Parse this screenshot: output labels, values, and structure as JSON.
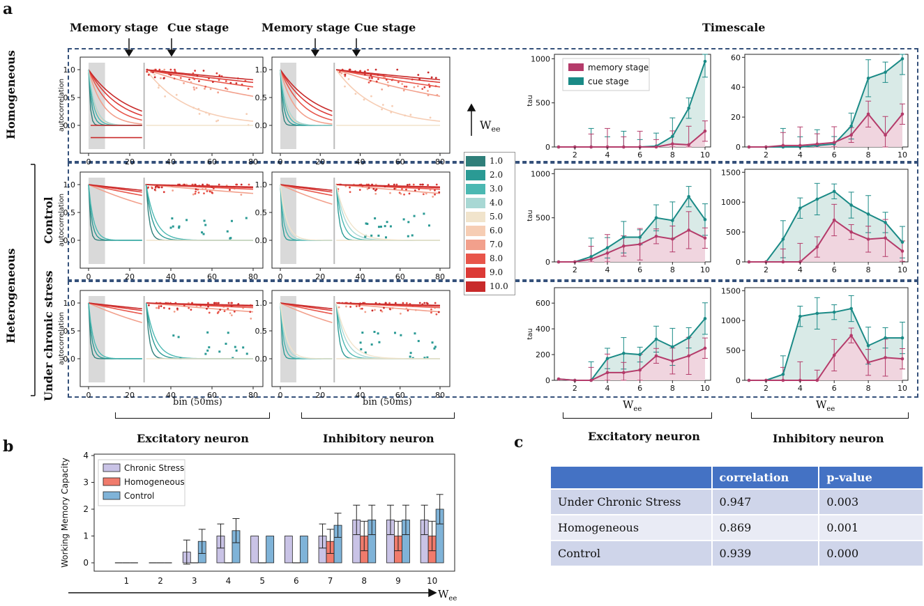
{
  "labels": {
    "panel_a": "a",
    "panel_b": "b",
    "panel_c": "c",
    "memory_stage": "Memory stage",
    "cue_stage": "Cue stage",
    "timescale": "Timescale",
    "homogeneous": "Homogeneous",
    "heterogeneous": "Heterogeneous",
    "control": "Control",
    "under_chronic_stress": "Under chronic stress",
    "excitatory_neuron": "Excitatory neuron",
    "inhibitory_neuron": "Inhibitory  neuron",
    "bin_label": "bin (50ms)",
    "wee_label": "W",
    "wee_sub": "ee",
    "autocorrelation": "autocorrelation",
    "tau": "tau"
  },
  "colors": {
    "teal": "#1a8a86",
    "pink": "#b43b6a",
    "dash": "#34507a",
    "bar_stress": "#c9c3e6",
    "bar_homo": "#f07b6c",
    "bar_control": "#7fb3d8"
  },
  "colorbar": {
    "values": [
      "1.0",
      "2.0",
      "3.0",
      "4.0",
      "5.0",
      "6.0",
      "7.0",
      "8.0",
      "9.0",
      "10.0"
    ],
    "colors": [
      "#2f7f7a",
      "#2a9a94",
      "#4bb8b2",
      "#a8d8d4",
      "#f1e4cc",
      "#f6cdb4",
      "#f2a08c",
      "#e8554a",
      "#dc3a36",
      "#c82a2a"
    ]
  },
  "autocorr_plots": {
    "xticks": [
      "0",
      "20",
      "40",
      "60",
      "80"
    ],
    "yticks": [
      "1.0",
      "0.5",
      "0.0"
    ]
  },
  "chart_data": [
    {
      "type": "line",
      "title": "Homogeneous - Excitatory timescale",
      "xlabel": "",
      "ylabel": "tau",
      "x": [
        1,
        2,
        3,
        4,
        5,
        6,
        7,
        8,
        9,
        10
      ],
      "xticks": [
        2,
        4,
        6,
        8,
        10
      ],
      "ylim": [
        0,
        1050
      ],
      "yticks": [
        0,
        500,
        1000
      ],
      "series": [
        {
          "name": "memory stage",
          "values": [
            0,
            0,
            0,
            0,
            0,
            0,
            0,
            35,
            25,
            180
          ]
        },
        {
          "name": "cue stage",
          "values": [
            0,
            0,
            0,
            0,
            0,
            0,
            10,
            120,
            440,
            970
          ]
        }
      ],
      "legend": [
        "memory stage",
        "cue stage"
      ]
    },
    {
      "type": "line",
      "title": "Homogeneous - Inhibitory timescale",
      "ylabel": "",
      "x": [
        1,
        2,
        3,
        4,
        5,
        6,
        7,
        8,
        9,
        10
      ],
      "xticks": [
        2,
        4,
        6,
        8,
        10
      ],
      "ylim": [
        0,
        62
      ],
      "yticks": [
        0,
        20,
        40,
        60
      ],
      "series": [
        {
          "name": "memory stage",
          "values": [
            0,
            0,
            1,
            1,
            2,
            3,
            8,
            22,
            8,
            22
          ]
        },
        {
          "name": "cue stage",
          "values": [
            0,
            0,
            0,
            0,
            1,
            2,
            14,
            46,
            50,
            59
          ]
        }
      ]
    },
    {
      "type": "line",
      "title": "Control - Excitatory timescale",
      "ylabel": "tau",
      "x": [
        1,
        2,
        3,
        4,
        5,
        6,
        7,
        8,
        9,
        10
      ],
      "xticks": [
        2,
        4,
        6,
        8,
        10
      ],
      "ylim": [
        0,
        1050
      ],
      "yticks": [
        0,
        500,
        1000
      ],
      "series": [
        {
          "name": "memory stage",
          "values": [
            0,
            0,
            30,
            100,
            180,
            200,
            290,
            260,
            360,
            270
          ]
        },
        {
          "name": "cue stage",
          "values": [
            0,
            0,
            60,
            160,
            280,
            280,
            500,
            470,
            740,
            480
          ]
        }
      ]
    },
    {
      "type": "line",
      "title": "Control - Inhibitory timescale",
      "ylabel": "",
      "x": [
        1,
        2,
        3,
        4,
        5,
        6,
        7,
        8,
        9,
        10
      ],
      "xticks": [
        2,
        4,
        6,
        8,
        10
      ],
      "ylim": [
        0,
        1550
      ],
      "yticks": [
        0,
        500,
        1000,
        1500
      ],
      "series": [
        {
          "name": "memory stage",
          "values": [
            0,
            0,
            0,
            0,
            250,
            700,
            500,
            380,
            400,
            180
          ]
        },
        {
          "name": "cue stage",
          "values": [
            0,
            0,
            380,
            900,
            1050,
            1180,
            950,
            800,
            660,
            330
          ]
        }
      ]
    },
    {
      "type": "line",
      "title": "Chronic stress - Excitatory timescale",
      "ylabel": "tau",
      "x": [
        1,
        2,
        3,
        4,
        5,
        6,
        7,
        8,
        9,
        10
      ],
      "xticks": [
        2,
        4,
        6,
        8,
        10
      ],
      "ylim": [
        0,
        720
      ],
      "yticks": [
        0,
        200,
        400,
        600
      ],
      "series": [
        {
          "name": "memory stage",
          "values": [
            10,
            0,
            0,
            60,
            60,
            80,
            190,
            150,
            190,
            250
          ]
        },
        {
          "name": "cue stage",
          "values": [
            10,
            0,
            0,
            170,
            210,
            200,
            320,
            260,
            330,
            480
          ]
        }
      ]
    },
    {
      "type": "line",
      "title": "Chronic stress - Inhibitory timescale",
      "ylabel": "",
      "x": [
        1,
        2,
        3,
        4,
        5,
        6,
        7,
        8,
        9,
        10
      ],
      "xticks": [
        2,
        4,
        6,
        8,
        10
      ],
      "ylim": [
        0,
        1550
      ],
      "yticks": [
        0,
        500,
        1000,
        1500
      ],
      "series": [
        {
          "name": "memory stage",
          "values": [
            0,
            0,
            0,
            0,
            0,
            420,
            750,
            300,
            380,
            360
          ]
        },
        {
          "name": "cue stage",
          "values": [
            0,
            0,
            100,
            1070,
            1120,
            1140,
            1200,
            580,
            710,
            710
          ]
        }
      ]
    },
    {
      "type": "bar",
      "title": "Working Memory Capacity vs Wee",
      "ylabel": "Working Memory Capacity",
      "categories": [
        "1",
        "2",
        "3",
        "4",
        "5",
        "6",
        "7",
        "8",
        "9",
        "10"
      ],
      "ylim": [
        0,
        4
      ],
      "yticks": [
        0,
        1,
        2,
        3,
        4
      ],
      "series": [
        {
          "name": "Chronic Stress",
          "values": [
            0,
            0,
            0.4,
            1,
            1,
            1,
            1,
            1.6,
            1.6,
            1.6
          ]
        },
        {
          "name": "Homogeneous",
          "values": [
            0,
            0,
            0,
            0,
            0,
            0,
            0.8,
            1,
            1,
            1
          ]
        },
        {
          "name": "Control",
          "values": [
            0,
            0,
            0.8,
            1.2,
            1,
            1,
            1.4,
            1.6,
            1.6,
            2
          ]
        }
      ],
      "legend": [
        "Chronic Stress",
        "Homogeneous",
        "Control"
      ]
    },
    {
      "type": "table",
      "title": "correlation table",
      "columns": [
        "",
        "correlation",
        "p-value"
      ],
      "rows": [
        [
          "Under Chronic Stress",
          "0.947",
          "0.003"
        ],
        [
          "Homogeneous",
          "0.869",
          "0.001"
        ],
        [
          "Control",
          "0.939",
          "0.000"
        ]
      ]
    }
  ]
}
